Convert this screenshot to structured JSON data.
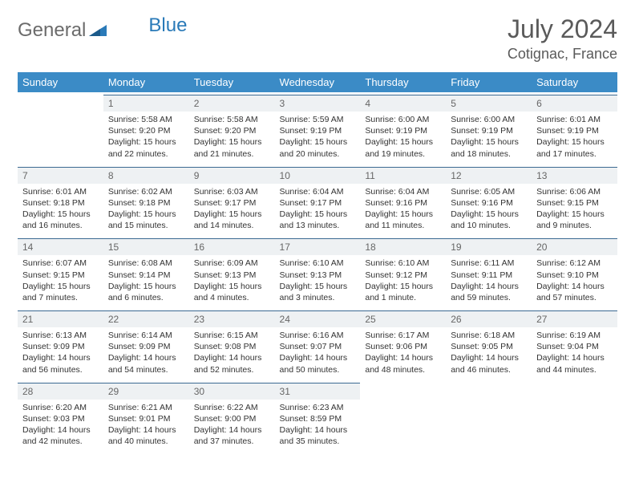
{
  "brand": {
    "general": "General",
    "blue": "Blue"
  },
  "title": "July 2024",
  "location": "Cotignac, France",
  "colors": {
    "header_bg": "#3b8bc6",
    "header_text": "#ffffff",
    "daynum_bg": "#eef1f3",
    "daynum_border": "#3b6a92",
    "text": "#333333",
    "title_color": "#5a5a5a",
    "logo_gray": "#6b6b6b",
    "logo_blue": "#2a7ab8"
  },
  "weekdays": [
    "Sunday",
    "Monday",
    "Tuesday",
    "Wednesday",
    "Thursday",
    "Friday",
    "Saturday"
  ],
  "weeks": [
    [
      {
        "empty": true
      },
      {
        "day": "1",
        "sunrise": "Sunrise: 5:58 AM",
        "sunset": "Sunset: 9:20 PM",
        "daylight1": "Daylight: 15 hours",
        "daylight2": "and 22 minutes."
      },
      {
        "day": "2",
        "sunrise": "Sunrise: 5:58 AM",
        "sunset": "Sunset: 9:20 PM",
        "daylight1": "Daylight: 15 hours",
        "daylight2": "and 21 minutes."
      },
      {
        "day": "3",
        "sunrise": "Sunrise: 5:59 AM",
        "sunset": "Sunset: 9:19 PM",
        "daylight1": "Daylight: 15 hours",
        "daylight2": "and 20 minutes."
      },
      {
        "day": "4",
        "sunrise": "Sunrise: 6:00 AM",
        "sunset": "Sunset: 9:19 PM",
        "daylight1": "Daylight: 15 hours",
        "daylight2": "and 19 minutes."
      },
      {
        "day": "5",
        "sunrise": "Sunrise: 6:00 AM",
        "sunset": "Sunset: 9:19 PM",
        "daylight1": "Daylight: 15 hours",
        "daylight2": "and 18 minutes."
      },
      {
        "day": "6",
        "sunrise": "Sunrise: 6:01 AM",
        "sunset": "Sunset: 9:19 PM",
        "daylight1": "Daylight: 15 hours",
        "daylight2": "and 17 minutes."
      }
    ],
    [
      {
        "day": "7",
        "sunrise": "Sunrise: 6:01 AM",
        "sunset": "Sunset: 9:18 PM",
        "daylight1": "Daylight: 15 hours",
        "daylight2": "and 16 minutes."
      },
      {
        "day": "8",
        "sunrise": "Sunrise: 6:02 AM",
        "sunset": "Sunset: 9:18 PM",
        "daylight1": "Daylight: 15 hours",
        "daylight2": "and 15 minutes."
      },
      {
        "day": "9",
        "sunrise": "Sunrise: 6:03 AM",
        "sunset": "Sunset: 9:17 PM",
        "daylight1": "Daylight: 15 hours",
        "daylight2": "and 14 minutes."
      },
      {
        "day": "10",
        "sunrise": "Sunrise: 6:04 AM",
        "sunset": "Sunset: 9:17 PM",
        "daylight1": "Daylight: 15 hours",
        "daylight2": "and 13 minutes."
      },
      {
        "day": "11",
        "sunrise": "Sunrise: 6:04 AM",
        "sunset": "Sunset: 9:16 PM",
        "daylight1": "Daylight: 15 hours",
        "daylight2": "and 11 minutes."
      },
      {
        "day": "12",
        "sunrise": "Sunrise: 6:05 AM",
        "sunset": "Sunset: 9:16 PM",
        "daylight1": "Daylight: 15 hours",
        "daylight2": "and 10 minutes."
      },
      {
        "day": "13",
        "sunrise": "Sunrise: 6:06 AM",
        "sunset": "Sunset: 9:15 PM",
        "daylight1": "Daylight: 15 hours",
        "daylight2": "and 9 minutes."
      }
    ],
    [
      {
        "day": "14",
        "sunrise": "Sunrise: 6:07 AM",
        "sunset": "Sunset: 9:15 PM",
        "daylight1": "Daylight: 15 hours",
        "daylight2": "and 7 minutes."
      },
      {
        "day": "15",
        "sunrise": "Sunrise: 6:08 AM",
        "sunset": "Sunset: 9:14 PM",
        "daylight1": "Daylight: 15 hours",
        "daylight2": "and 6 minutes."
      },
      {
        "day": "16",
        "sunrise": "Sunrise: 6:09 AM",
        "sunset": "Sunset: 9:13 PM",
        "daylight1": "Daylight: 15 hours",
        "daylight2": "and 4 minutes."
      },
      {
        "day": "17",
        "sunrise": "Sunrise: 6:10 AM",
        "sunset": "Sunset: 9:13 PM",
        "daylight1": "Daylight: 15 hours",
        "daylight2": "and 3 minutes."
      },
      {
        "day": "18",
        "sunrise": "Sunrise: 6:10 AM",
        "sunset": "Sunset: 9:12 PM",
        "daylight1": "Daylight: 15 hours",
        "daylight2": "and 1 minute."
      },
      {
        "day": "19",
        "sunrise": "Sunrise: 6:11 AM",
        "sunset": "Sunset: 9:11 PM",
        "daylight1": "Daylight: 14 hours",
        "daylight2": "and 59 minutes."
      },
      {
        "day": "20",
        "sunrise": "Sunrise: 6:12 AM",
        "sunset": "Sunset: 9:10 PM",
        "daylight1": "Daylight: 14 hours",
        "daylight2": "and 57 minutes."
      }
    ],
    [
      {
        "day": "21",
        "sunrise": "Sunrise: 6:13 AM",
        "sunset": "Sunset: 9:09 PM",
        "daylight1": "Daylight: 14 hours",
        "daylight2": "and 56 minutes."
      },
      {
        "day": "22",
        "sunrise": "Sunrise: 6:14 AM",
        "sunset": "Sunset: 9:09 PM",
        "daylight1": "Daylight: 14 hours",
        "daylight2": "and 54 minutes."
      },
      {
        "day": "23",
        "sunrise": "Sunrise: 6:15 AM",
        "sunset": "Sunset: 9:08 PM",
        "daylight1": "Daylight: 14 hours",
        "daylight2": "and 52 minutes."
      },
      {
        "day": "24",
        "sunrise": "Sunrise: 6:16 AM",
        "sunset": "Sunset: 9:07 PM",
        "daylight1": "Daylight: 14 hours",
        "daylight2": "and 50 minutes."
      },
      {
        "day": "25",
        "sunrise": "Sunrise: 6:17 AM",
        "sunset": "Sunset: 9:06 PM",
        "daylight1": "Daylight: 14 hours",
        "daylight2": "and 48 minutes."
      },
      {
        "day": "26",
        "sunrise": "Sunrise: 6:18 AM",
        "sunset": "Sunset: 9:05 PM",
        "daylight1": "Daylight: 14 hours",
        "daylight2": "and 46 minutes."
      },
      {
        "day": "27",
        "sunrise": "Sunrise: 6:19 AM",
        "sunset": "Sunset: 9:04 PM",
        "daylight1": "Daylight: 14 hours",
        "daylight2": "and 44 minutes."
      }
    ],
    [
      {
        "day": "28",
        "sunrise": "Sunrise: 6:20 AM",
        "sunset": "Sunset: 9:03 PM",
        "daylight1": "Daylight: 14 hours",
        "daylight2": "and 42 minutes."
      },
      {
        "day": "29",
        "sunrise": "Sunrise: 6:21 AM",
        "sunset": "Sunset: 9:01 PM",
        "daylight1": "Daylight: 14 hours",
        "daylight2": "and 40 minutes."
      },
      {
        "day": "30",
        "sunrise": "Sunrise: 6:22 AM",
        "sunset": "Sunset: 9:00 PM",
        "daylight1": "Daylight: 14 hours",
        "daylight2": "and 37 minutes."
      },
      {
        "day": "31",
        "sunrise": "Sunrise: 6:23 AM",
        "sunset": "Sunset: 8:59 PM",
        "daylight1": "Daylight: 14 hours",
        "daylight2": "and 35 minutes."
      },
      {
        "empty": true
      },
      {
        "empty": true
      },
      {
        "empty": true
      }
    ]
  ]
}
